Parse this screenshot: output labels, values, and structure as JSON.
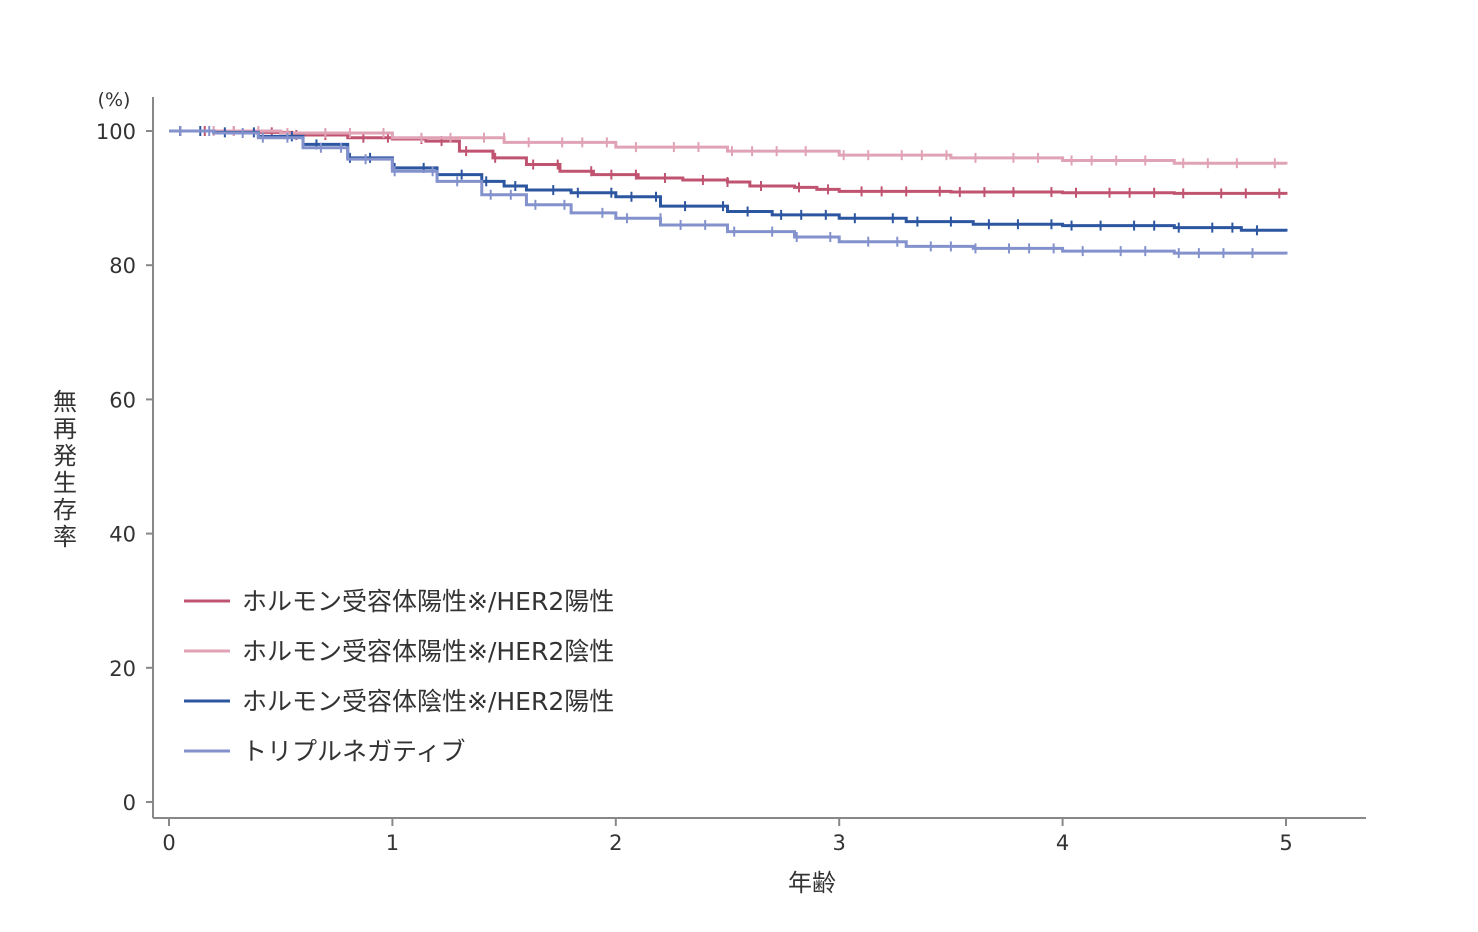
{
  "chart_data": {
    "type": "line",
    "y_unit": "(%)",
    "xlabel": "年齢",
    "ylabel": "無再発生存率",
    "xlim": [
      0,
      5
    ],
    "ylim": [
      0,
      100
    ],
    "x_ticks": [
      "0",
      "1",
      "2",
      "3",
      "4",
      "5"
    ],
    "y_ticks": [
      "0",
      "20",
      "40",
      "60",
      "80",
      "100"
    ],
    "grid": false,
    "legend_position": "bottom-left",
    "series": [
      {
        "name": "ホルモン受容体陽性※/HER2陽性",
        "color": "#c05470",
        "x": [
          0,
          0.3,
          0.55,
          0.8,
          1.0,
          1.15,
          1.3,
          1.45,
          1.6,
          1.75,
          1.9,
          2.1,
          2.3,
          2.5,
          2.6,
          2.8,
          2.9,
          3.0,
          3.5,
          4.0,
          4.5,
          5.0
        ],
        "y": [
          100,
          99.8,
          99.4,
          99.0,
          98.8,
          98.5,
          97.0,
          96.0,
          95.0,
          94.0,
          93.5,
          93.0,
          92.7,
          92.4,
          91.8,
          91.6,
          91.3,
          91.0,
          90.9,
          90.8,
          90.7,
          90.5
        ]
      },
      {
        "name": "ホルモン受容体陽性※/HER2陰性",
        "color": "#e0a3b6",
        "x": [
          0,
          0.5,
          1.0,
          1.5,
          2.0,
          2.5,
          3.0,
          3.5,
          4.0,
          4.5,
          5.0
        ],
        "y": [
          100,
          99.7,
          99.0,
          98.3,
          97.6,
          97.0,
          96.4,
          96.0,
          95.6,
          95.2,
          95.0
        ]
      },
      {
        "name": "ホルモン受容体陰性※/HER2陽性",
        "color": "#2d56a1",
        "x": [
          0,
          0.2,
          0.4,
          0.6,
          0.8,
          1.0,
          1.2,
          1.4,
          1.5,
          1.6,
          1.8,
          2.0,
          2.2,
          2.5,
          2.7,
          3.0,
          3.3,
          3.6,
          4.0,
          4.5,
          4.8,
          5.0
        ],
        "y": [
          100,
          99.8,
          99.2,
          98.0,
          96.0,
          94.5,
          93.5,
          92.5,
          91.8,
          91.2,
          90.8,
          90.2,
          88.8,
          88.0,
          87.5,
          87.0,
          86.5,
          86.1,
          85.9,
          85.6,
          85.2,
          85.0
        ]
      },
      {
        "name": "トリプルネガティブ",
        "color": "#8392cc",
        "x": [
          0,
          0.2,
          0.4,
          0.6,
          0.8,
          1.0,
          1.2,
          1.4,
          1.6,
          1.8,
          2.0,
          2.2,
          2.5,
          2.8,
          3.0,
          3.3,
          3.6,
          4.0,
          4.5,
          5.0
        ],
        "y": [
          100,
          99.7,
          99.0,
          97.5,
          95.8,
          94.0,
          92.5,
          90.5,
          89.0,
          87.8,
          87.0,
          86.0,
          85.0,
          84.2,
          83.5,
          82.8,
          82.5,
          82.1,
          81.8,
          81.6
        ]
      }
    ]
  }
}
